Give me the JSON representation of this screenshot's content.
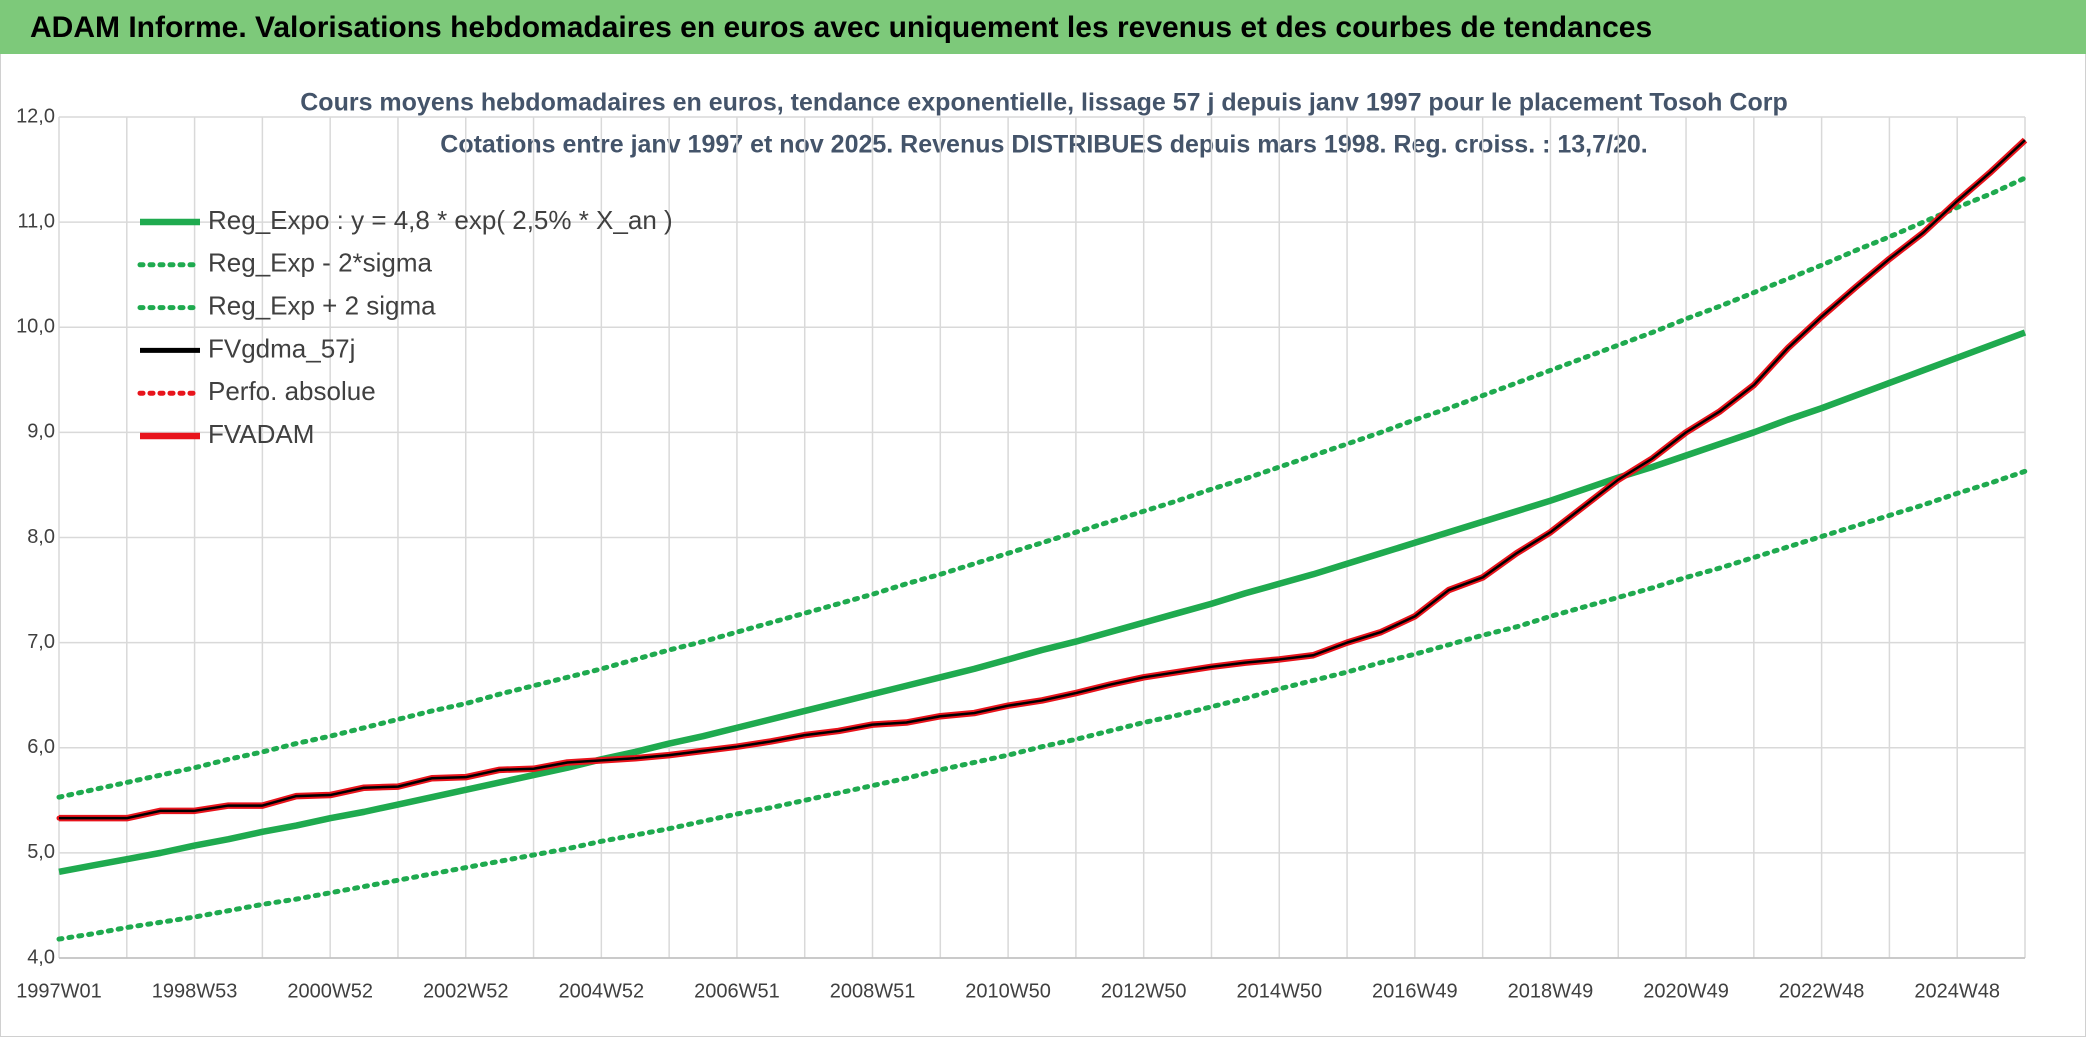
{
  "header": {
    "title": "ADAM Informe. Valorisations hebdomadaires en euros avec uniquement les revenus et des courbes de tendances"
  },
  "chart_data": {
    "type": "line",
    "title": "Cours moyens hebdomadaires en euros, tendance exponentielle, lissage 57 j depuis janv 1997 pour le placement Tosoh Corp",
    "subtitle": "Cotations entre janv 1997 et nov 2025. Revenus DISTRIBUES depuis mars 1998. Reg. croiss. : 13,7/20.",
    "categories": [
      "1997W01",
      null,
      null,
      null,
      "1998W53",
      null,
      null,
      null,
      "2000W52",
      null,
      null,
      null,
      "2002W52",
      null,
      null,
      null,
      "2004W52",
      null,
      null,
      null,
      "2006W51",
      null,
      null,
      null,
      "2008W51",
      null,
      null,
      null,
      "2010W50",
      null,
      null,
      null,
      "2012W50",
      null,
      null,
      null,
      "2014W50",
      null,
      null,
      null,
      "2016W49",
      null,
      null,
      null,
      "2018W49",
      null,
      null,
      null,
      "2020W49",
      null,
      null,
      null,
      "2022W48",
      null,
      null,
      null,
      "2024W48",
      null,
      null
    ],
    "ylim": [
      4,
      12
    ],
    "yticks": [
      {
        "value": 4,
        "label": "4,0"
      },
      {
        "value": 5,
        "label": "5,0"
      },
      {
        "value": 6,
        "label": "6,0"
      },
      {
        "value": 7,
        "label": "7,0"
      },
      {
        "value": 8,
        "label": "8,0"
      },
      {
        "value": 9,
        "label": "9,0"
      },
      {
        "value": 10,
        "label": "10,0"
      },
      {
        "value": 11,
        "label": "11,0"
      },
      {
        "value": 12,
        "label": "12,0"
      }
    ],
    "grid": true,
    "legend": "top-left",
    "series": [
      {
        "name": "Reg_Expo : y = 4,8 * exp( 2,5% *  X_an )",
        "color": "#1faa4f",
        "dash": "solid",
        "values": [
          4.82,
          4.88,
          4.94,
          5.0,
          5.07,
          5.13,
          5.2,
          5.26,
          5.33,
          5.39,
          5.46,
          5.53,
          5.6,
          5.67,
          5.74,
          5.81,
          5.89,
          5.96,
          6.04,
          6.11,
          6.19,
          6.27,
          6.35,
          6.43,
          6.51,
          6.59,
          6.67,
          6.75,
          6.84,
          6.93,
          7.01,
          7.1,
          7.19,
          7.28,
          7.37,
          7.47,
          7.56,
          7.65,
          7.75,
          7.85,
          7.95,
          8.05,
          8.15,
          8.25,
          8.35,
          8.46,
          8.57,
          8.67,
          8.78,
          8.89,
          9.0,
          9.12,
          9.23,
          9.35,
          9.47,
          9.59,
          9.71,
          9.83,
          9.95
        ]
      },
      {
        "name": "Reg_Exp - 2*sigma",
        "color": "#1faa4f",
        "dash": "dotted",
        "values": [
          4.18,
          4.23,
          4.29,
          4.34,
          4.39,
          4.45,
          4.51,
          4.56,
          4.62,
          4.68,
          4.74,
          4.8,
          4.86,
          4.92,
          4.98,
          5.04,
          5.11,
          5.17,
          5.23,
          5.3,
          5.37,
          5.43,
          5.5,
          5.57,
          5.64,
          5.71,
          5.79,
          5.86,
          5.93,
          6.01,
          6.08,
          6.16,
          6.24,
          6.31,
          6.39,
          6.47,
          6.56,
          6.64,
          6.72,
          6.81,
          6.89,
          6.98,
          7.07,
          7.15,
          7.25,
          7.34,
          7.43,
          7.52,
          7.62,
          7.71,
          7.81,
          7.91,
          8.01,
          8.11,
          8.21,
          8.31,
          8.42,
          8.52,
          8.63
        ]
      },
      {
        "name": "Reg_Exp + 2 sigma",
        "color": "#1faa4f",
        "dash": "dotted",
        "values": [
          5.53,
          5.6,
          5.67,
          5.74,
          5.81,
          5.89,
          5.96,
          6.04,
          6.11,
          6.19,
          6.27,
          6.35,
          6.42,
          6.51,
          6.59,
          6.67,
          6.75,
          6.84,
          6.93,
          7.01,
          7.1,
          7.19,
          7.28,
          7.37,
          7.46,
          7.56,
          7.65,
          7.75,
          7.85,
          7.95,
          8.05,
          8.15,
          8.25,
          8.35,
          8.46,
          8.56,
          8.67,
          8.78,
          8.89,
          9.0,
          9.12,
          9.23,
          9.35,
          9.47,
          9.59,
          9.71,
          9.83,
          9.95,
          10.08,
          10.2,
          10.33,
          10.46,
          10.59,
          10.73,
          10.86,
          11.0,
          11.14,
          11.27,
          11.42
        ]
      },
      {
        "name": "FVgdma_57j",
        "color": "#000000",
        "dash": "solid",
        "values": [
          5.33,
          5.33,
          5.33,
          5.4,
          5.4,
          5.45,
          5.45,
          5.54,
          5.55,
          5.62,
          5.63,
          5.71,
          5.72,
          5.79,
          5.8,
          5.86,
          5.88,
          5.9,
          5.93,
          5.97,
          6.01,
          6.06,
          6.12,
          6.16,
          6.22,
          6.24,
          6.3,
          6.33,
          6.4,
          6.45,
          6.52,
          6.6,
          6.67,
          6.72,
          6.77,
          6.81,
          6.84,
          6.88,
          7.0,
          7.1,
          7.25,
          7.5,
          7.62,
          7.85,
          8.05,
          8.3,
          8.55,
          8.75,
          9.0,
          9.2,
          9.45,
          9.8,
          10.1,
          10.38,
          10.65,
          10.9,
          11.2,
          11.48,
          11.78
        ]
      },
      {
        "name": "Perfo. absolue",
        "color": "#e8141c",
        "dash": "dotted",
        "values": [
          5.33,
          5.33,
          5.33,
          5.4,
          5.4,
          5.45,
          5.45,
          5.54,
          5.55,
          5.62,
          5.63,
          5.71,
          5.72,
          5.79,
          5.8,
          5.86,
          5.88,
          5.9,
          5.93,
          5.97,
          6.01,
          6.06,
          6.12,
          6.16,
          6.22,
          6.24,
          6.3,
          6.33,
          6.4,
          6.45,
          6.52,
          6.6,
          6.67,
          6.72,
          6.77,
          6.81,
          6.84,
          6.88,
          7.0,
          7.1,
          7.25,
          7.5,
          7.62,
          7.85,
          8.05,
          8.3,
          8.55,
          8.75,
          9.0,
          9.2,
          9.45,
          9.8,
          10.1,
          10.38,
          10.65,
          10.9,
          11.2,
          11.48,
          11.78
        ]
      },
      {
        "name": "FVADAM",
        "color": "#e8141c",
        "dash": "solid",
        "values": [
          5.33,
          5.33,
          5.33,
          5.4,
          5.4,
          5.45,
          5.45,
          5.54,
          5.55,
          5.62,
          5.63,
          5.71,
          5.72,
          5.79,
          5.8,
          5.86,
          5.88,
          5.9,
          5.93,
          5.97,
          6.01,
          6.06,
          6.12,
          6.16,
          6.22,
          6.24,
          6.3,
          6.33,
          6.4,
          6.45,
          6.52,
          6.6,
          6.67,
          6.72,
          6.77,
          6.81,
          6.84,
          6.88,
          7.0,
          7.1,
          7.25,
          7.5,
          7.62,
          7.85,
          8.05,
          8.3,
          8.55,
          8.75,
          9.0,
          9.2,
          9.45,
          9.8,
          10.1,
          10.38,
          10.65,
          10.9,
          11.2,
          11.48,
          11.78
        ]
      }
    ]
  }
}
